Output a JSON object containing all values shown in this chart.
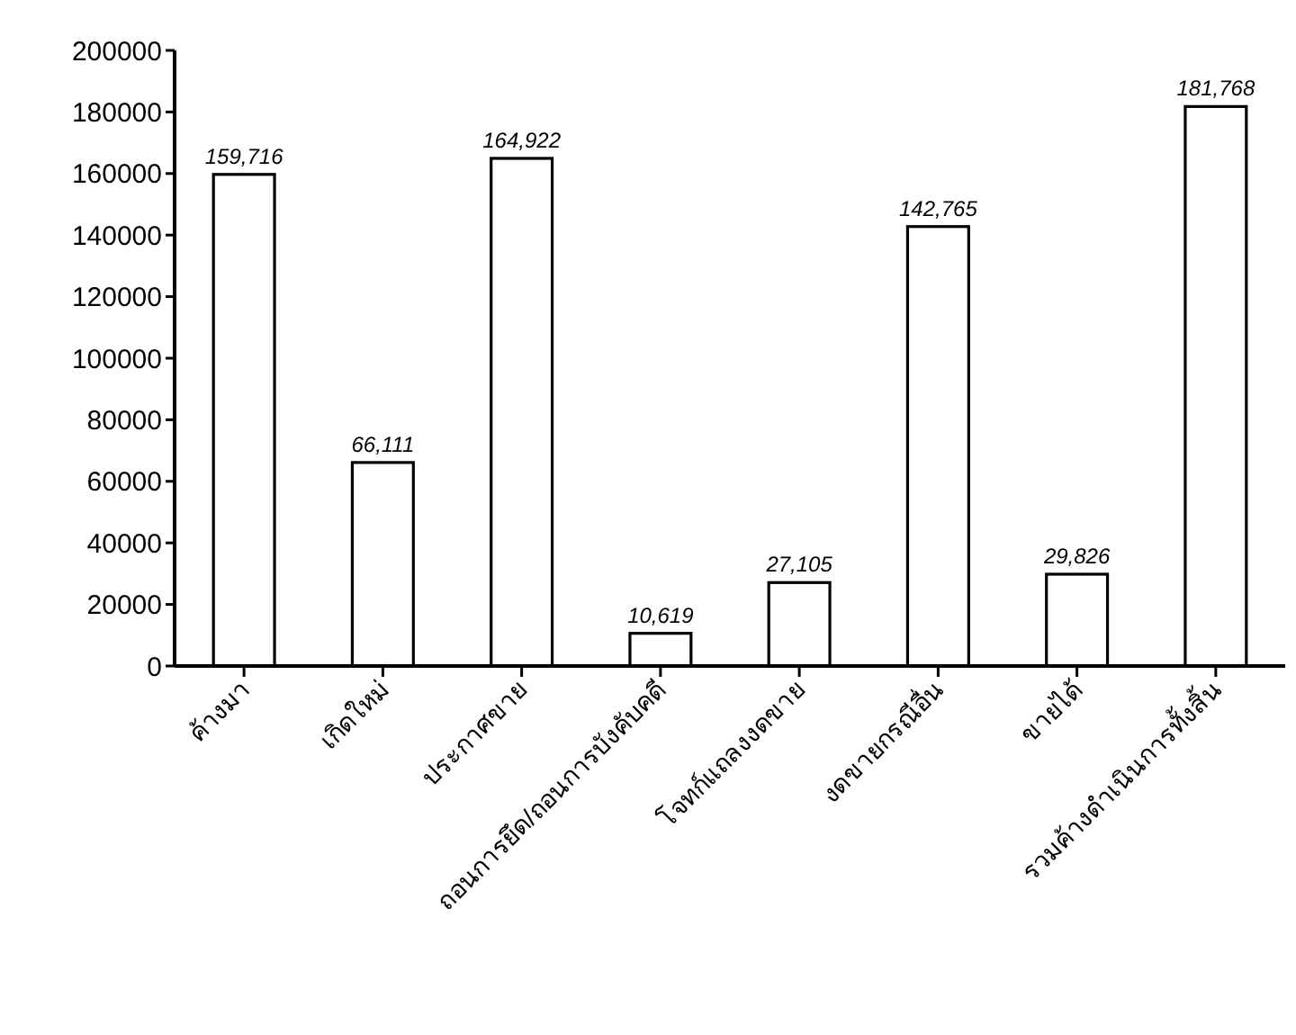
{
  "chart_data": {
    "type": "bar",
    "categories": [
      "ค้างมา",
      "เกิดใหม่",
      "ประกาศขาย",
      "ถอนการยึด/ถอนการบังคับคดี",
      "โจทก์แถลงงดขาย",
      "งดขายกรณีอื่น",
      "ขายได้",
      "รวมค้างดำเนินการทั้งสิ้น"
    ],
    "values": [
      159716,
      66111,
      164922,
      10619,
      27105,
      142765,
      29826,
      181768
    ],
    "value_labels": [
      "159,716",
      "66,111",
      "164,922",
      "10,619",
      "27,105",
      "142,765",
      "29,826",
      "181,768"
    ],
    "color": "#ffffff",
    "ylim": [
      0,
      200000
    ],
    "yticks": [
      0,
      20000,
      40000,
      60000,
      80000,
      100000,
      120000,
      140000,
      160000,
      180000,
      200000
    ],
    "grid": false
  }
}
